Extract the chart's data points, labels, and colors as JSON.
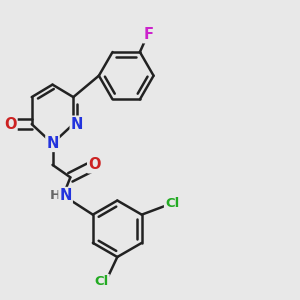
{
  "background_color": "#e8e8e8",
  "bond_color": "#222222",
  "bond_width": 1.8,
  "atoms": {
    "N1": {
      "label": "N",
      "color": "#2233dd",
      "fontsize": 10.5
    },
    "N2": {
      "label": "N",
      "color": "#2233dd",
      "fontsize": 10.5
    },
    "O1": {
      "label": "O",
      "color": "#cc2222",
      "fontsize": 10.5
    },
    "O2": {
      "label": "O",
      "color": "#cc2222",
      "fontsize": 10.5
    },
    "NH": {
      "label": "N",
      "color": "#2233dd",
      "fontsize": 10.5
    },
    "H": {
      "label": "H",
      "color": "#666666",
      "fontsize": 9.5
    },
    "F": {
      "label": "F",
      "color": "#cc22cc",
      "fontsize": 10.5
    },
    "Cl1": {
      "label": "Cl",
      "color": "#22aa22",
      "fontsize": 9.5
    },
    "Cl2": {
      "label": "Cl",
      "color": "#22aa22",
      "fontsize": 9.5
    }
  },
  "fig_width": 3.0,
  "fig_height": 3.0,
  "dpi": 100
}
